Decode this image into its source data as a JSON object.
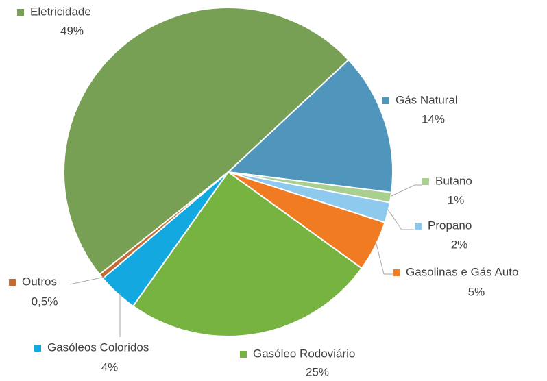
{
  "chart_data": {
    "type": "pie",
    "categories": [
      "Eletricidade",
      "Gás Natural",
      "Butano",
      "Propano",
      "Gasolinas e Gás Auto",
      "Gasóleo Rodoviário",
      "Gasóleos Coloridos",
      "Outros"
    ],
    "values": [
      49,
      14,
      1,
      2,
      5,
      25,
      4,
      0.5
    ],
    "value_labels": [
      "49%",
      "14%",
      "1%",
      "2%",
      "5%",
      "25%",
      "4%",
      "0,5%"
    ],
    "colors": [
      "#77a055",
      "#4f95bc",
      "#a9d08e",
      "#8dcaed",
      "#f07b23",
      "#76b341",
      "#13a9e0",
      "#c56a32"
    ]
  }
}
